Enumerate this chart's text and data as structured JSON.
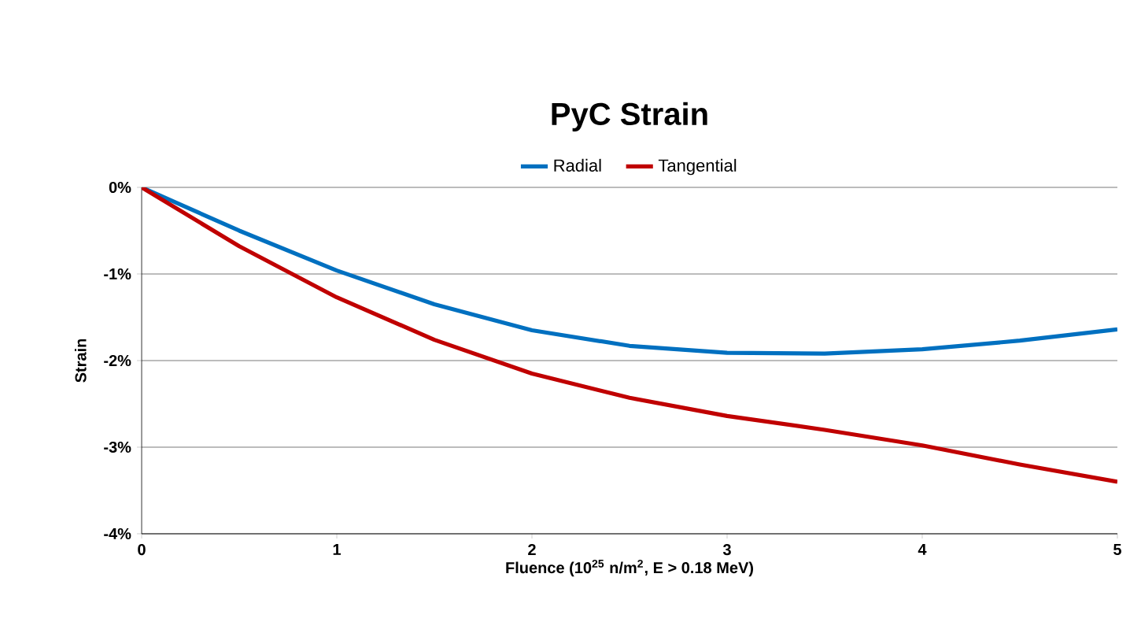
{
  "chart_data": {
    "type": "line",
    "title": "PyC Strain",
    "xlabel": "Fluence (10$^{25}$ n/m$^{2}$, E > 0.18 MeV)",
    "ylabel": "Strain",
    "x": [
      0,
      0.5,
      1,
      1.5,
      2,
      2.5,
      3,
      3.5,
      4,
      4.5,
      5
    ],
    "series": [
      {
        "name": "Radial",
        "color": "#0070c0",
        "values": [
          0,
          -0.5,
          -0.96,
          -1.35,
          -1.65,
          -1.83,
          -1.91,
          -1.92,
          -1.87,
          -1.77,
          -1.64
        ]
      },
      {
        "name": "Tangential",
        "color": "#c00000",
        "values": [
          0,
          -0.68,
          -1.27,
          -1.76,
          -2.15,
          -2.43,
          -2.64,
          -2.8,
          -2.98,
          -3.2,
          -3.4
        ]
      }
    ],
    "xlim": [
      0,
      5
    ],
    "xticks": [
      0,
      1,
      2,
      3,
      4,
      5
    ],
    "ylim": [
      -4,
      0
    ],
    "yticks": [
      {
        "value": -4,
        "label": "-4%"
      },
      {
        "value": -3,
        "label": "-3%"
      },
      {
        "value": -2,
        "label": "-2%"
      },
      {
        "value": -1,
        "label": "-1%"
      },
      {
        "value": 0,
        "label": "0%"
      }
    ],
    "grid": "y",
    "legend": "top",
    "marker": "none",
    "line_style": "solid"
  }
}
